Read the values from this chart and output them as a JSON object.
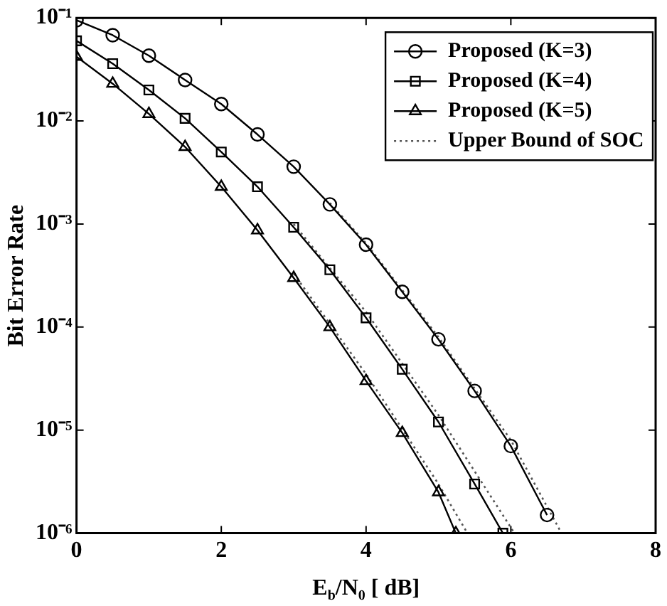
{
  "chart_data": {
    "type": "line",
    "xlabel": "E$_{b}$/N$_{0}$ [ dB]",
    "ylabel": "Bit Error Rate",
    "log": "y",
    "xlim": [
      0,
      8
    ],
    "xticks": [
      0,
      2,
      4,
      6,
      8
    ],
    "ylim": [
      1e-06,
      0.1
    ],
    "yticks": [
      {
        "value": 1e-06,
        "label": "10⁻⁶"
      },
      {
        "value": 1e-05,
        "label": "10⁻⁵"
      },
      {
        "value": 0.0001,
        "label": "10⁻⁴"
      },
      {
        "value": 0.001,
        "label": "10⁻³"
      },
      {
        "value": 0.01,
        "label": "10⁻²"
      },
      {
        "value": 0.1,
        "label": "10⁻¹"
      }
    ],
    "legend": "top right",
    "grid": false,
    "series": [
      {
        "name": "Proposed (K=3)",
        "color": "#000000",
        "marker": "circle",
        "line_style": "solid",
        "x": [
          0,
          0.5,
          1,
          1.5,
          2,
          2.5,
          3,
          3.5,
          4,
          4.5,
          5,
          5.5,
          6,
          6.5
        ],
        "values": [
          0.095,
          0.068,
          0.043,
          0.025,
          0.0146,
          0.0074,
          0.0036,
          0.00155,
          0.00063,
          0.00022,
          7.6e-05,
          2.4e-05,
          7e-06,
          1.5e-06
        ]
      },
      {
        "name": "Proposed (K=4)",
        "color": "#000000",
        "marker": "square",
        "line_style": "solid",
        "x": [
          0,
          0.5,
          1,
          1.5,
          2,
          2.5,
          3,
          3.5,
          4,
          4.5,
          5,
          5.5,
          5.89
        ],
        "values": [
          0.06,
          0.036,
          0.02,
          0.0106,
          0.005,
          0.0023,
          0.00093,
          0.00036,
          0.000123,
          3.9e-05,
          1.2e-05,
          3e-06,
          1e-06
        ]
      },
      {
        "name": "Proposed (K=5)",
        "color": "#000000",
        "marker": "triangle",
        "line_style": "solid",
        "x": [
          0,
          0.5,
          1,
          1.5,
          2,
          2.5,
          3,
          3.5,
          4,
          4.5,
          5,
          5.24
        ],
        "values": [
          0.042,
          0.023,
          0.0117,
          0.0056,
          0.0023,
          0.00087,
          0.0003,
          0.0001,
          3e-05,
          9.4e-06,
          2.5e-06,
          1e-06
        ]
      },
      {
        "name": "Upper Bound of SOC",
        "color": "#555555",
        "marker": "none",
        "line_style": "dotted",
        "x": [
          3.5,
          4,
          5,
          6,
          6.7
        ],
        "values": [
          0.0016,
          0.00065,
          8e-05,
          8e-06,
          1e-06
        ]
      },
      {
        "color": "#555555",
        "marker": "none",
        "line_style": "dotted",
        "x": [
          3,
          4,
          5,
          6.05
        ],
        "values": [
          0.001,
          0.00014,
          1.4e-05,
          1e-06
        ]
      },
      {
        "color": "#555555",
        "marker": "none",
        "line_style": "dotted",
        "x": [
          3,
          4,
          5,
          5.4
        ],
        "values": [
          0.00033,
          3.5e-05,
          3e-06,
          1e-06
        ]
      }
    ]
  }
}
